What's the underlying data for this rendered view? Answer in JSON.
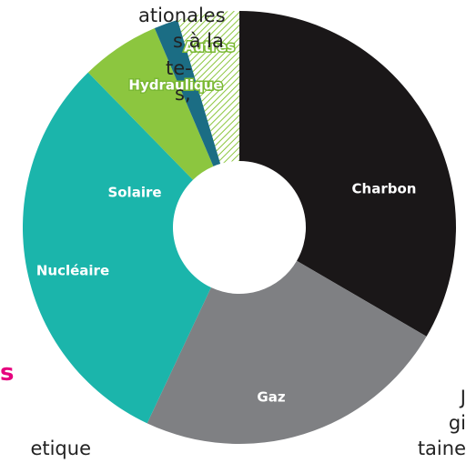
{
  "background_text": [
    "ationales",
    "s à la",
    "te-",
    "s,",
    "s",
    "etique",
    "J",
    "gi",
    "taine"
  ],
  "chart_data": {
    "type": "pie",
    "donut": true,
    "categories": [
      "Charbon",
      "Gaz",
      "Nucléaire",
      "Solaire",
      "Hydraulique",
      "Autres"
    ],
    "values": [
      33.4,
      23.6,
      30.7,
      5.9,
      1.8,
      4.6
    ],
    "colors": [
      "#1a1718",
      "#7f8083",
      "#1bb5ab",
      "#8cc63f",
      "#1b6d84",
      "hatch"
    ]
  }
}
